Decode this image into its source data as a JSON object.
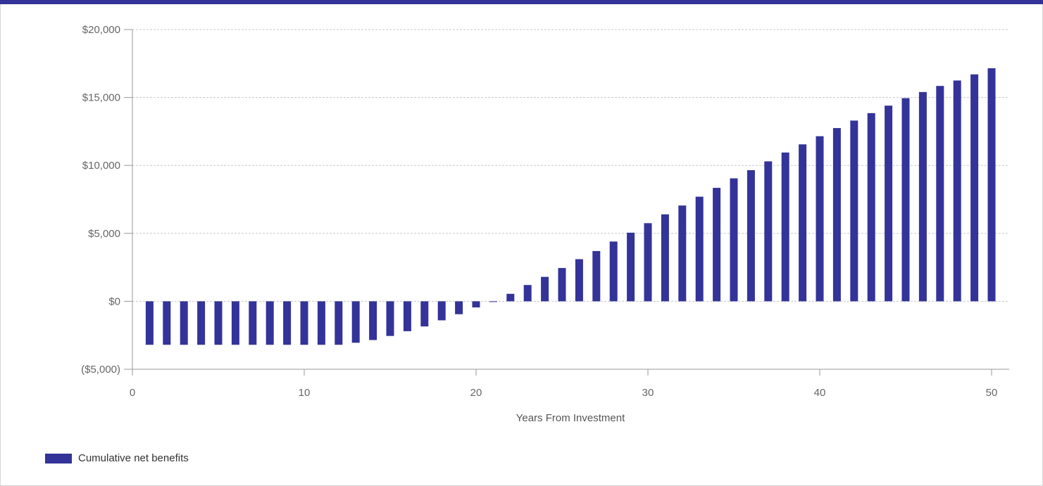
{
  "colors": {
    "bar": "#333399",
    "top_bar": "#333399",
    "grid": "#c8c8c8",
    "axis": "#999999"
  },
  "legend": {
    "label": "Cumulative net benefits"
  },
  "chart_data": {
    "type": "bar",
    "xlabel": "Years From Investment",
    "ylabel": "",
    "xlim": [
      0,
      51
    ],
    "ylim": [
      -5000,
      20000
    ],
    "x_ticks": [
      0,
      10,
      20,
      30,
      40,
      50
    ],
    "y_ticks": [
      -5000,
      0,
      5000,
      10000,
      15000,
      20000
    ],
    "y_tick_labels": [
      "($5,000)",
      "$0",
      "$5,000",
      "$10,000",
      "$15,000",
      "$20,000"
    ],
    "grid": "horizontal",
    "legend_position": "bottom-left",
    "series": [
      {
        "name": "Cumulative net benefits",
        "x": [
          1,
          2,
          3,
          4,
          5,
          6,
          7,
          8,
          9,
          10,
          11,
          12,
          13,
          14,
          15,
          16,
          17,
          18,
          19,
          20,
          21,
          22,
          23,
          24,
          25,
          26,
          27,
          28,
          29,
          30,
          31,
          32,
          33,
          34,
          35,
          36,
          37,
          38,
          39,
          40,
          41,
          42,
          43,
          44,
          45,
          46,
          47,
          48,
          49,
          50
        ],
        "values": [
          -3200,
          -3200,
          -3200,
          -3200,
          -3200,
          -3200,
          -3200,
          -3200,
          -3200,
          -3200,
          -3200,
          -3200,
          -3050,
          -2850,
          -2550,
          -2200,
          -1850,
          -1400,
          -950,
          -450,
          -50,
          550,
          1200,
          1800,
          2450,
          3100,
          3700,
          4400,
          5050,
          5750,
          6400,
          7050,
          7700,
          8350,
          9050,
          9650,
          10300,
          10950,
          11550,
          12150,
          12750,
          13300,
          13850,
          14400,
          14950,
          15400,
          15850,
          16250,
          16700,
          17150
        ]
      }
    ]
  }
}
